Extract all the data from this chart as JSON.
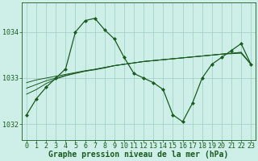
{
  "background_color": "#ceeee8",
  "plot_bg_color": "#ceeee8",
  "grid_color": "#9ecec5",
  "line_color": "#1a5c20",
  "marker_color": "#1a5c20",
  "title": "Graphe pression niveau de la mer (hPa)",
  "xlim": [
    -0.5,
    23.5
  ],
  "ylim": [
    1031.65,
    1034.65
  ],
  "yticks": [
    1032,
    1033,
    1034
  ],
  "xticks": [
    0,
    1,
    2,
    3,
    4,
    5,
    6,
    7,
    8,
    9,
    10,
    11,
    12,
    13,
    14,
    15,
    16,
    17,
    18,
    19,
    20,
    21,
    22,
    23
  ],
  "main_series": [
    1032.2,
    1032.55,
    1032.8,
    1033.0,
    1033.2,
    1034.0,
    1034.25,
    1034.3,
    1034.05,
    1033.85,
    1033.45,
    1033.1,
    1033.0,
    1032.9,
    1032.75,
    1032.2,
    1032.05,
    1032.45,
    1033.0,
    1033.3,
    1033.45,
    1033.6,
    1033.75,
    1033.3
  ],
  "trend1": [
    1032.65,
    1032.75,
    1032.88,
    1032.98,
    1033.05,
    1033.1,
    1033.15,
    1033.18,
    1033.22,
    1033.27,
    1033.3,
    1033.33,
    1033.36,
    1033.38,
    1033.4,
    1033.42,
    1033.44,
    1033.46,
    1033.48,
    1033.5,
    1033.52,
    1033.53,
    1033.54,
    1033.3
  ],
  "trend2": [
    1032.78,
    1032.86,
    1032.94,
    1033.0,
    1033.06,
    1033.11,
    1033.15,
    1033.19,
    1033.23,
    1033.27,
    1033.3,
    1033.33,
    1033.36,
    1033.38,
    1033.4,
    1033.42,
    1033.44,
    1033.46,
    1033.48,
    1033.5,
    1033.52,
    1033.54,
    1033.56,
    1033.3
  ],
  "trend3": [
    1032.9,
    1032.96,
    1033.0,
    1033.04,
    1033.08,
    1033.12,
    1033.16,
    1033.19,
    1033.23,
    1033.27,
    1033.3,
    1033.33,
    1033.36,
    1033.38,
    1033.4,
    1033.42,
    1033.44,
    1033.46,
    1033.48,
    1033.5,
    1033.52,
    1033.54,
    1033.56,
    1033.3
  ],
  "title_fontsize": 7,
  "tick_fontsize": 6,
  "title_color": "#1a5c20",
  "tick_color": "#1a5c20",
  "spine_color": "#1a5c20"
}
